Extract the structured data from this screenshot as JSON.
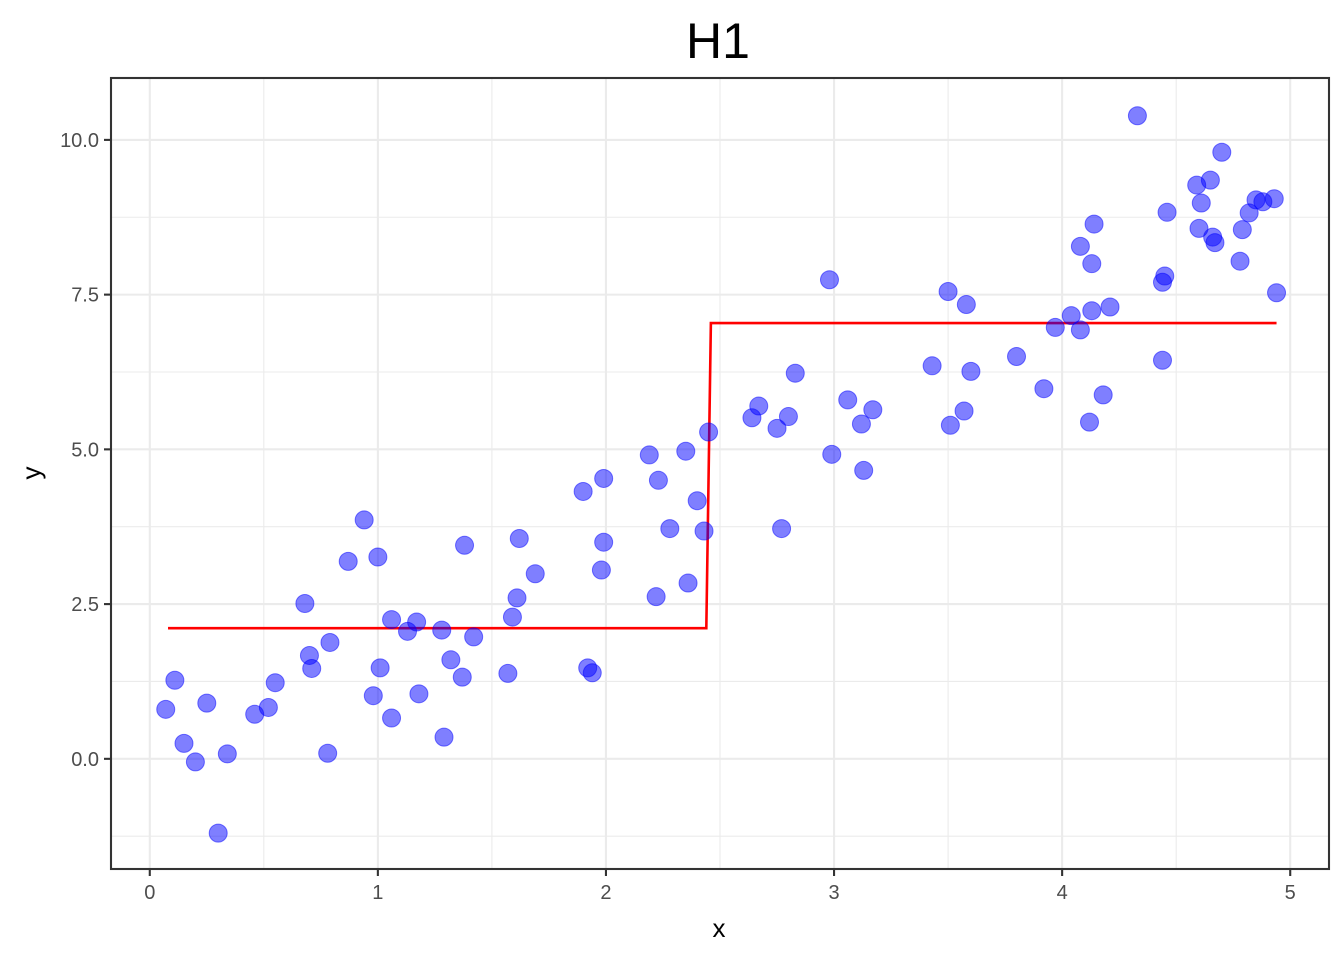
{
  "chart_data": {
    "type": "scatter",
    "title": "H1",
    "xlabel": "x",
    "ylabel": "y",
    "xlim": [
      -0.17,
      5.17
    ],
    "ylim": [
      -1.78,
      11.0
    ],
    "x_ticks": [
      0,
      1,
      2,
      3,
      4,
      5
    ],
    "x_tick_labels": [
      "0",
      "1",
      "2",
      "3",
      "4",
      "5"
    ],
    "y_ticks": [
      0,
      2.5,
      5,
      7.5,
      10
    ],
    "y_tick_labels": [
      "0.0",
      "2.5",
      "5.0",
      "7.5",
      "10.0"
    ],
    "grid": true,
    "colors": {
      "points": "#0000ff",
      "line": "#ff0000"
    },
    "series": [
      {
        "kind": "points",
        "x": [
          0.07,
          0.11,
          0.15,
          0.2,
          0.25,
          0.3,
          0.34,
          0.46,
          0.52,
          0.55,
          0.68,
          0.7,
          0.71,
          0.78,
          0.79,
          0.87,
          0.94,
          0.98,
          1.0,
          1.01,
          1.06,
          1.06,
          1.13,
          1.17,
          1.18,
          1.28,
          1.29,
          1.32,
          1.37,
          1.38,
          1.42,
          1.57,
          1.59,
          1.61,
          1.62,
          1.69,
          1.9,
          1.92,
          1.94,
          1.98,
          1.99,
          1.99,
          2.19,
          2.22,
          2.23,
          2.28,
          2.35,
          2.36,
          2.4,
          2.43,
          2.45,
          2.64,
          2.67,
          2.75,
          2.77,
          2.8,
          2.83,
          2.98,
          2.99,
          3.06,
          3.12,
          3.13,
          3.17,
          3.43,
          3.5,
          3.51,
          3.57,
          3.58,
          3.6,
          3.8,
          3.92,
          3.97,
          4.04,
          4.08,
          4.08,
          4.12,
          4.13,
          4.13,
          4.14,
          4.18,
          4.21,
          4.33,
          4.44,
          4.44,
          4.45,
          4.46,
          4.59,
          4.6,
          4.61,
          4.65,
          4.66,
          4.67,
          4.7,
          4.78,
          4.79,
          4.82,
          4.85,
          4.88,
          4.93,
          4.94
        ],
        "y": [
          0.8,
          1.27,
          0.25,
          -0.05,
          0.9,
          -1.2,
          0.08,
          0.72,
          0.83,
          1.23,
          2.51,
          1.67,
          1.46,
          0.09,
          1.88,
          3.19,
          3.86,
          1.02,
          3.26,
          1.47,
          0.66,
          2.25,
          2.06,
          2.21,
          1.05,
          2.08,
          0.35,
          1.6,
          1.32,
          3.45,
          1.97,
          1.38,
          2.29,
          2.6,
          3.56,
          2.99,
          4.32,
          1.47,
          1.39,
          3.05,
          3.5,
          4.53,
          4.91,
          2.62,
          4.5,
          3.72,
          4.97,
          2.84,
          4.17,
          3.68,
          5.28,
          5.51,
          5.7,
          5.34,
          3.72,
          5.53,
          6.23,
          7.74,
          4.92,
          5.8,
          5.41,
          4.66,
          5.64,
          6.35,
          7.55,
          5.39,
          5.62,
          7.34,
          6.26,
          6.5,
          5.98,
          6.97,
          7.16,
          8.28,
          6.93,
          5.44,
          8.0,
          7.24,
          8.64,
          5.88,
          7.3,
          10.39,
          7.7,
          6.44,
          7.8,
          8.83,
          9.27,
          8.57,
          8.98,
          9.35,
          8.43,
          8.34,
          9.8,
          8.04,
          8.55,
          8.82,
          9.03,
          9.0,
          9.05,
          7.53
        ]
      },
      {
        "kind": "step-line",
        "x": [
          0.08,
          2.44,
          2.46,
          4.94
        ],
        "y": [
          2.11,
          2.11,
          7.04,
          7.04
        ]
      }
    ]
  }
}
